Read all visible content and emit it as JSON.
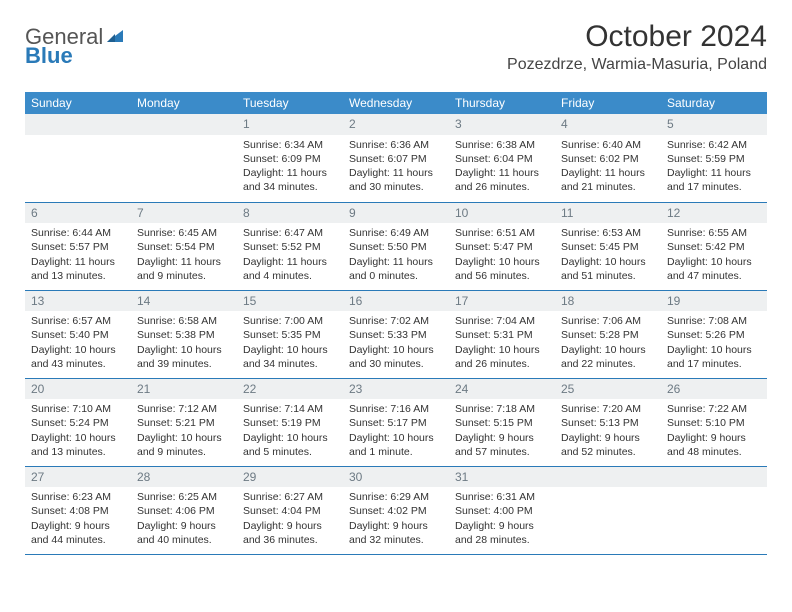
{
  "header": {
    "logo_general": "General",
    "logo_blue": "Blue",
    "month_title": "October 2024",
    "location": "Pozezdrze, Warmia-Masuria, Poland"
  },
  "colors": {
    "header_bg": "#3b8bc9",
    "daynum_bg": "#eef0f1",
    "daynum_text": "#6d7a84",
    "border": "#2a7ab8",
    "logo_blue": "#2a7ab8"
  },
  "weekdays": [
    "Sunday",
    "Monday",
    "Tuesday",
    "Wednesday",
    "Thursday",
    "Friday",
    "Saturday"
  ],
  "weeks": [
    [
      {
        "n": "",
        "sr": "",
        "ss": "",
        "dl": ""
      },
      {
        "n": "",
        "sr": "",
        "ss": "",
        "dl": ""
      },
      {
        "n": "1",
        "sr": "Sunrise: 6:34 AM",
        "ss": "Sunset: 6:09 PM",
        "dl": "Daylight: 11 hours and 34 minutes."
      },
      {
        "n": "2",
        "sr": "Sunrise: 6:36 AM",
        "ss": "Sunset: 6:07 PM",
        "dl": "Daylight: 11 hours and 30 minutes."
      },
      {
        "n": "3",
        "sr": "Sunrise: 6:38 AM",
        "ss": "Sunset: 6:04 PM",
        "dl": "Daylight: 11 hours and 26 minutes."
      },
      {
        "n": "4",
        "sr": "Sunrise: 6:40 AM",
        "ss": "Sunset: 6:02 PM",
        "dl": "Daylight: 11 hours and 21 minutes."
      },
      {
        "n": "5",
        "sr": "Sunrise: 6:42 AM",
        "ss": "Sunset: 5:59 PM",
        "dl": "Daylight: 11 hours and 17 minutes."
      }
    ],
    [
      {
        "n": "6",
        "sr": "Sunrise: 6:44 AM",
        "ss": "Sunset: 5:57 PM",
        "dl": "Daylight: 11 hours and 13 minutes."
      },
      {
        "n": "7",
        "sr": "Sunrise: 6:45 AM",
        "ss": "Sunset: 5:54 PM",
        "dl": "Daylight: 11 hours and 9 minutes."
      },
      {
        "n": "8",
        "sr": "Sunrise: 6:47 AM",
        "ss": "Sunset: 5:52 PM",
        "dl": "Daylight: 11 hours and 4 minutes."
      },
      {
        "n": "9",
        "sr": "Sunrise: 6:49 AM",
        "ss": "Sunset: 5:50 PM",
        "dl": "Daylight: 11 hours and 0 minutes."
      },
      {
        "n": "10",
        "sr": "Sunrise: 6:51 AM",
        "ss": "Sunset: 5:47 PM",
        "dl": "Daylight: 10 hours and 56 minutes."
      },
      {
        "n": "11",
        "sr": "Sunrise: 6:53 AM",
        "ss": "Sunset: 5:45 PM",
        "dl": "Daylight: 10 hours and 51 minutes."
      },
      {
        "n": "12",
        "sr": "Sunrise: 6:55 AM",
        "ss": "Sunset: 5:42 PM",
        "dl": "Daylight: 10 hours and 47 minutes."
      }
    ],
    [
      {
        "n": "13",
        "sr": "Sunrise: 6:57 AM",
        "ss": "Sunset: 5:40 PM",
        "dl": "Daylight: 10 hours and 43 minutes."
      },
      {
        "n": "14",
        "sr": "Sunrise: 6:58 AM",
        "ss": "Sunset: 5:38 PM",
        "dl": "Daylight: 10 hours and 39 minutes."
      },
      {
        "n": "15",
        "sr": "Sunrise: 7:00 AM",
        "ss": "Sunset: 5:35 PM",
        "dl": "Daylight: 10 hours and 34 minutes."
      },
      {
        "n": "16",
        "sr": "Sunrise: 7:02 AM",
        "ss": "Sunset: 5:33 PM",
        "dl": "Daylight: 10 hours and 30 minutes."
      },
      {
        "n": "17",
        "sr": "Sunrise: 7:04 AM",
        "ss": "Sunset: 5:31 PM",
        "dl": "Daylight: 10 hours and 26 minutes."
      },
      {
        "n": "18",
        "sr": "Sunrise: 7:06 AM",
        "ss": "Sunset: 5:28 PM",
        "dl": "Daylight: 10 hours and 22 minutes."
      },
      {
        "n": "19",
        "sr": "Sunrise: 7:08 AM",
        "ss": "Sunset: 5:26 PM",
        "dl": "Daylight: 10 hours and 17 minutes."
      }
    ],
    [
      {
        "n": "20",
        "sr": "Sunrise: 7:10 AM",
        "ss": "Sunset: 5:24 PM",
        "dl": "Daylight: 10 hours and 13 minutes."
      },
      {
        "n": "21",
        "sr": "Sunrise: 7:12 AM",
        "ss": "Sunset: 5:21 PM",
        "dl": "Daylight: 10 hours and 9 minutes."
      },
      {
        "n": "22",
        "sr": "Sunrise: 7:14 AM",
        "ss": "Sunset: 5:19 PM",
        "dl": "Daylight: 10 hours and 5 minutes."
      },
      {
        "n": "23",
        "sr": "Sunrise: 7:16 AM",
        "ss": "Sunset: 5:17 PM",
        "dl": "Daylight: 10 hours and 1 minute."
      },
      {
        "n": "24",
        "sr": "Sunrise: 7:18 AM",
        "ss": "Sunset: 5:15 PM",
        "dl": "Daylight: 9 hours and 57 minutes."
      },
      {
        "n": "25",
        "sr": "Sunrise: 7:20 AM",
        "ss": "Sunset: 5:13 PM",
        "dl": "Daylight: 9 hours and 52 minutes."
      },
      {
        "n": "26",
        "sr": "Sunrise: 7:22 AM",
        "ss": "Sunset: 5:10 PM",
        "dl": "Daylight: 9 hours and 48 minutes."
      }
    ],
    [
      {
        "n": "27",
        "sr": "Sunrise: 6:23 AM",
        "ss": "Sunset: 4:08 PM",
        "dl": "Daylight: 9 hours and 44 minutes."
      },
      {
        "n": "28",
        "sr": "Sunrise: 6:25 AM",
        "ss": "Sunset: 4:06 PM",
        "dl": "Daylight: 9 hours and 40 minutes."
      },
      {
        "n": "29",
        "sr": "Sunrise: 6:27 AM",
        "ss": "Sunset: 4:04 PM",
        "dl": "Daylight: 9 hours and 36 minutes."
      },
      {
        "n": "30",
        "sr": "Sunrise: 6:29 AM",
        "ss": "Sunset: 4:02 PM",
        "dl": "Daylight: 9 hours and 32 minutes."
      },
      {
        "n": "31",
        "sr": "Sunrise: 6:31 AM",
        "ss": "Sunset: 4:00 PM",
        "dl": "Daylight: 9 hours and 28 minutes."
      },
      {
        "n": "",
        "sr": "",
        "ss": "",
        "dl": ""
      },
      {
        "n": "",
        "sr": "",
        "ss": "",
        "dl": ""
      }
    ]
  ]
}
